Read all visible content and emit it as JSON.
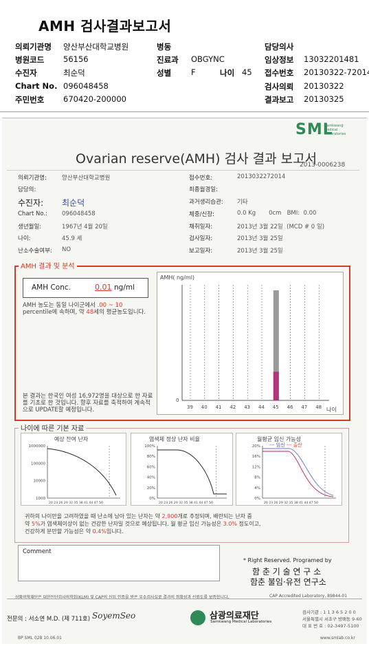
{
  "header": {
    "title": "AMH 검사결과보고서",
    "rows": [
      {
        "l1": "의뢰기관명",
        "v1": "양산부산대학교병원",
        "l2": "병동",
        "v2": "",
        "l3": "",
        "v3": "",
        "l4": "담당의사",
        "v4": ""
      },
      {
        "l1": "병원코드",
        "v1": "56156",
        "l2": "진료과",
        "v2": "OBGYNC",
        "l3": "",
        "v3": "",
        "l4": "임상정보",
        "v4": "13032201481"
      },
      {
        "l1": "수진자",
        "v1": "최순덕",
        "l2": "성별",
        "v2": "F",
        "l3": "나이",
        "v3": "45",
        "l4": "접수번호",
        "v4": "20130322-72014"
      },
      {
        "l1": "Chart No.",
        "v1": "096048458",
        "l2": "",
        "v2": "",
        "l3": "",
        "v3": "",
        "l4": "검사의뢰",
        "v4": "20130322"
      },
      {
        "l1": "주민번호",
        "v1": "670420-200000",
        "l2": "",
        "v2": "",
        "l3": "",
        "v3": "",
        "l4": "결과보고",
        "v4": "20130325"
      }
    ]
  },
  "report": {
    "logo": "SML",
    "logo_sub": [
      "Samkwang",
      "Medical",
      "Laboratories"
    ],
    "title": "Ovarian reserve(AMH) 검사 결과 보고서",
    "doc_no": "2013-0006238",
    "left_fields": [
      {
        "label": "의뢰기관명:",
        "value": "양산부산대학교병원"
      },
      {
        "label": "담당의:",
        "value": ""
      },
      {
        "label": "수진자:",
        "value": "최순덕"
      },
      {
        "label": "Chart No.:",
        "value": "096048458"
      },
      {
        "label": "생년월일:",
        "value": "1967년 4월 20일"
      },
      {
        "label": "나이:",
        "value": "45.9 세"
      },
      {
        "label": "난소수술여부:",
        "value": "NO"
      }
    ],
    "right_fields": [
      {
        "label": "접수번호:",
        "value": "2013032272014"
      },
      {
        "label": "최종월경일:",
        "value": ""
      },
      {
        "label": "과거생리습관:",
        "value": "기타"
      },
      {
        "label": "체중/신장:",
        "value": "0.0 Kg       0cm   BMI:  0.00"
      },
      {
        "label": "채취일자:",
        "value": "2013년 3월 22일  (MCD # 0 일)"
      },
      {
        "label": "검사일자:",
        "value": "2013년 3월 25일"
      },
      {
        "label": "보고일자:",
        "value": "2013년 3월 25일"
      }
    ]
  },
  "amh": {
    "section_title": "AMH 결과 및 분석",
    "conc_label": "AMH Conc.",
    "conc_value": "0.01",
    "conc_unit": "ng/ml",
    "desc_pre": "AMH 농도는 동일 나이군에서",
    "desc_range": ".00 ~ 10",
    "desc_mid": "percentile에 속하며, 약",
    "desc_age": "48",
    "desc_post": "세의 평균농도입니다.",
    "note": "본 결과는 한국인 여성 16,972명을 대상으로 한 자료를 기초로 한 것입니다. 향후 자료를 축적하여 계속적으로 UPDATE할 예정입니다."
  },
  "chart_data": {
    "type": "bar",
    "ylabel": "AMH( ng/ml)",
    "xlabel": "나이",
    "categories": [
      "39",
      "40",
      "41",
      "42",
      "43",
      "44",
      "45",
      "46",
      "47",
      "48"
    ],
    "y_zero_label": "0",
    "highlight_category": "45",
    "range_bar": {
      "category": "45",
      "low": 0,
      "high": 1.0
    },
    "value_bar": {
      "category": "45",
      "value": 0.26
    },
    "ylim": [
      0,
      1.05
    ],
    "colors": {
      "range": "#9a9a9a",
      "value": "#b0357a"
    }
  },
  "basic": {
    "section_title": "나이에 따른 기본 자료",
    "charts": [
      {
        "title": "예상 잔여 난자",
        "yticks": [
          "1000000",
          "100000",
          "10000",
          "1000"
        ],
        "xticks": "20 23 26 29 32 35 38 41 44 47 50"
      },
      {
        "title": "염색체 정상 난자 비율",
        "yticks": [
          "100%",
          "80%",
          "60%",
          "40%",
          "20%",
          "0%"
        ],
        "xticks": "20 23 26 29 32 35 38 41 44 47 50"
      },
      {
        "title": "월평균 임신 가능성",
        "legend_a": "--- 임신",
        "legend_b": "--- 출산",
        "yticks": [
          "20%",
          "16%",
          "12%",
          "8%",
          "4%",
          "0%"
        ],
        "xticks": "20 23 26 29 32 35 38 41 44 47 50"
      }
    ],
    "summary_1a": "귀하의 나이만을 고려하였을 때 난소에 남아 있는 난자는 약",
    "summary_1b": "2,900",
    "summary_1c": "개로 추정되며, 배란되는 난자 중",
    "summary_2a": "약",
    "summary_2b": "5%",
    "summary_2c": "가 염색체이상이 없는 건강한 난자일 것으로 예상됩니다. 월 평균 임신 가능성은",
    "summary_2d": "3.0%",
    "summary_2e": "정도이고,",
    "summary_3a": "건강하게 분만할 가능성은 약",
    "summary_3b": "0.4%",
    "summary_3c": "입니다."
  },
  "comment": {
    "label": "Comment"
  },
  "sign": {
    "rights": "* Right Reserved. Programed by",
    "org1": "함 춘  기 술  연 구 소",
    "org2": "함춘 불임·유전 연구소",
    "cap": "CAP  Accredited  Laboratory,  89844-01",
    "footnote": "상황의학재단은 대한진단검사의학회(KLM) 및 CAP의 신임 인증을 받은 우수검사실로 결과의 정확성과 신뢰도를 보증합니다.",
    "doctor": "전문의 : 서소연 M.D. (제 711호)",
    "signature": "SoyemSeo",
    "foundation": "삼광의료재단",
    "foundation_sub": "Samkwang Medical Laboratories",
    "address1": "검사기관 : 1 1 3 6 5 2 0 0",
    "address2": "서울특별시 서초구 방배동 9-60",
    "address3": "대 표 번 호 : 02-3497-5100",
    "formcode": "BP   SML   028  10.06.01",
    "web": "www.smlab.co.kr"
  }
}
